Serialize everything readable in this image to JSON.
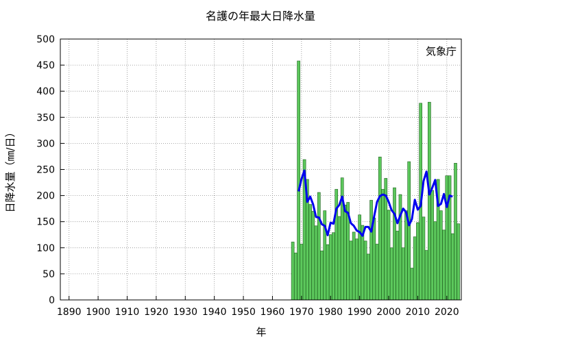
{
  "chart_data": {
    "type": "bar",
    "title": "名護の年最大日降水量",
    "xlabel": "年",
    "ylabel": "日降水量（㎜/日）",
    "source_label": "気象庁",
    "xlim": [
      1887,
      2025
    ],
    "ylim": [
      0,
      500
    ],
    "x_ticks": [
      1890,
      1900,
      1910,
      1920,
      1930,
      1940,
      1950,
      1960,
      1970,
      1980,
      1990,
      2000,
      2010,
      2020
    ],
    "y_ticks": [
      0,
      50,
      100,
      150,
      200,
      250,
      300,
      350,
      400,
      450,
      500
    ],
    "grid": true,
    "colors": {
      "bar_fill": "#5cc85c",
      "bar_edge": "#1f5f1f",
      "line": "#0000ee"
    },
    "series": [
      {
        "type": "bar",
        "x": [
          1967,
          1968,
          1969,
          1970,
          1971,
          1972,
          1973,
          1974,
          1975,
          1976,
          1977,
          1978,
          1979,
          1980,
          1981,
          1982,
          1983,
          1984,
          1985,
          1986,
          1987,
          1988,
          1989,
          1990,
          1991,
          1992,
          1993,
          1994,
          1995,
          1996,
          1997,
          1998,
          1999,
          2000,
          2001,
          2002,
          2003,
          2004,
          2005,
          2006,
          2007,
          2008,
          2009,
          2010,
          2011,
          2012,
          2013,
          2014,
          2015,
          2016,
          2017,
          2018,
          2019,
          2020,
          2021,
          2022,
          2023,
          2024
        ],
        "values": [
          111,
          90,
          458,
          107,
          269,
          231,
          183,
          170,
          142,
          206,
          94,
          171,
          106,
          125,
          129,
          212,
          160,
          234,
          182,
          187,
          113,
          130,
          117,
          163,
          143,
          113,
          88,
          191,
          157,
          107,
          274,
          212,
          233,
          172,
          100,
          215,
          132,
          202,
          100,
          171,
          265,
          61,
          121,
          148,
          377,
          159,
          95,
          379,
          210,
          150,
          231,
          171,
          134,
          238,
          238,
          127,
          262,
          146
        ]
      },
      {
        "type": "line",
        "x": [
          1969,
          1970,
          1971,
          1972,
          1973,
          1974,
          1975,
          1976,
          1977,
          1978,
          1979,
          1980,
          1981,
          1982,
          1983,
          1984,
          1985,
          1986,
          1987,
          1988,
          1989,
          1990,
          1991,
          1992,
          1993,
          1994,
          1995,
          1996,
          1997,
          1998,
          1999,
          2000,
          2001,
          2002,
          2003,
          2004,
          2005,
          2006,
          2007,
          2008,
          2009,
          2010,
          2011,
          2012,
          2013,
          2014,
          2015,
          2016,
          2017,
          2018,
          2019,
          2020,
          2021,
          2022
        ],
        "values": [
          208,
          232,
          248,
          188,
          198,
          183,
          159,
          158,
          145,
          142,
          124,
          148,
          146,
          175,
          182,
          198,
          170,
          167,
          147,
          142,
          133,
          130,
          123,
          140,
          140,
          131,
          160,
          188,
          199,
          202,
          200,
          188,
          172,
          165,
          147,
          162,
          175,
          168,
          143,
          155,
          192,
          173,
          180,
          228,
          246,
          202,
          215,
          230,
          180,
          184,
          203,
          178,
          200,
          198
        ]
      }
    ]
  }
}
